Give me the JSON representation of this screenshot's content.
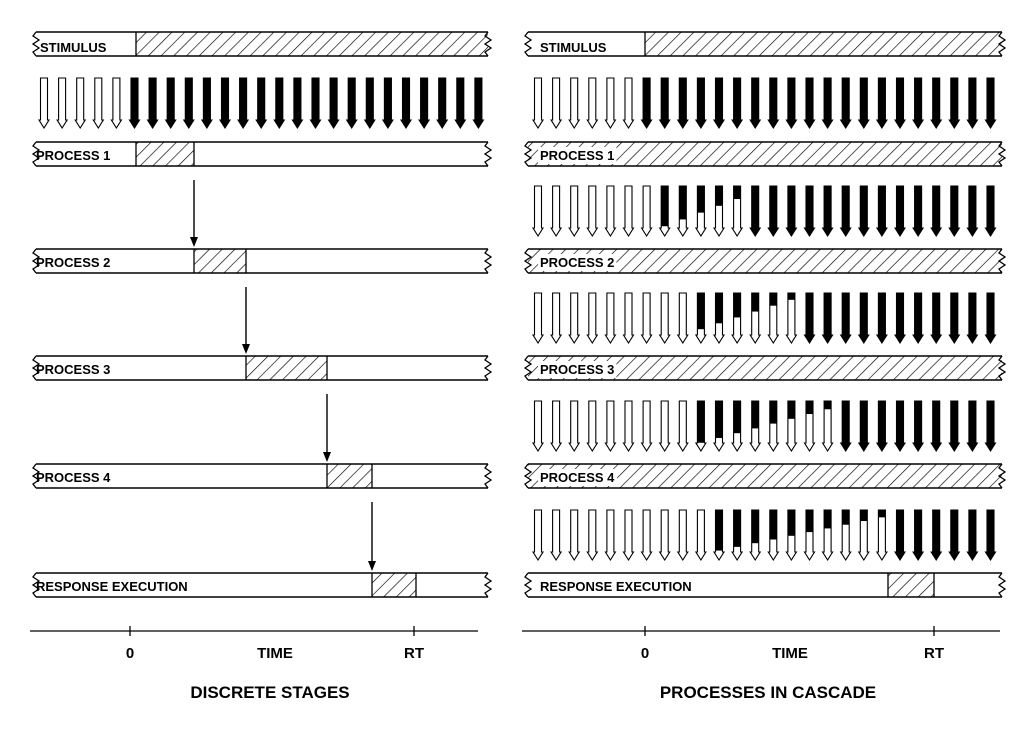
{
  "colors": {
    "ink": "#000000",
    "paper": "#ffffff"
  },
  "discrete": {
    "title": "DISCRETE STAGES",
    "stimulus_label": "STIMULUS",
    "process_labels": [
      "PROCESS 1",
      "PROCESS 2",
      "PROCESS 3",
      "PROCESS 4",
      "RESPONSE EXECUTION"
    ],
    "axis": {
      "zero_label": "0",
      "time_label": "TIME",
      "rt_label": "RT"
    }
  },
  "cascade": {
    "title": "PROCESSES IN CASCADE",
    "stimulus_label": "STIMULUS",
    "process_labels": [
      "PROCESS 1",
      "PROCESS 2",
      "PROCESS 3",
      "PROCESS 4",
      "RESPONSE EXECUTION"
    ],
    "axis": {
      "zero_label": "0",
      "time_label": "TIME",
      "rt_label": "RT"
    }
  }
}
